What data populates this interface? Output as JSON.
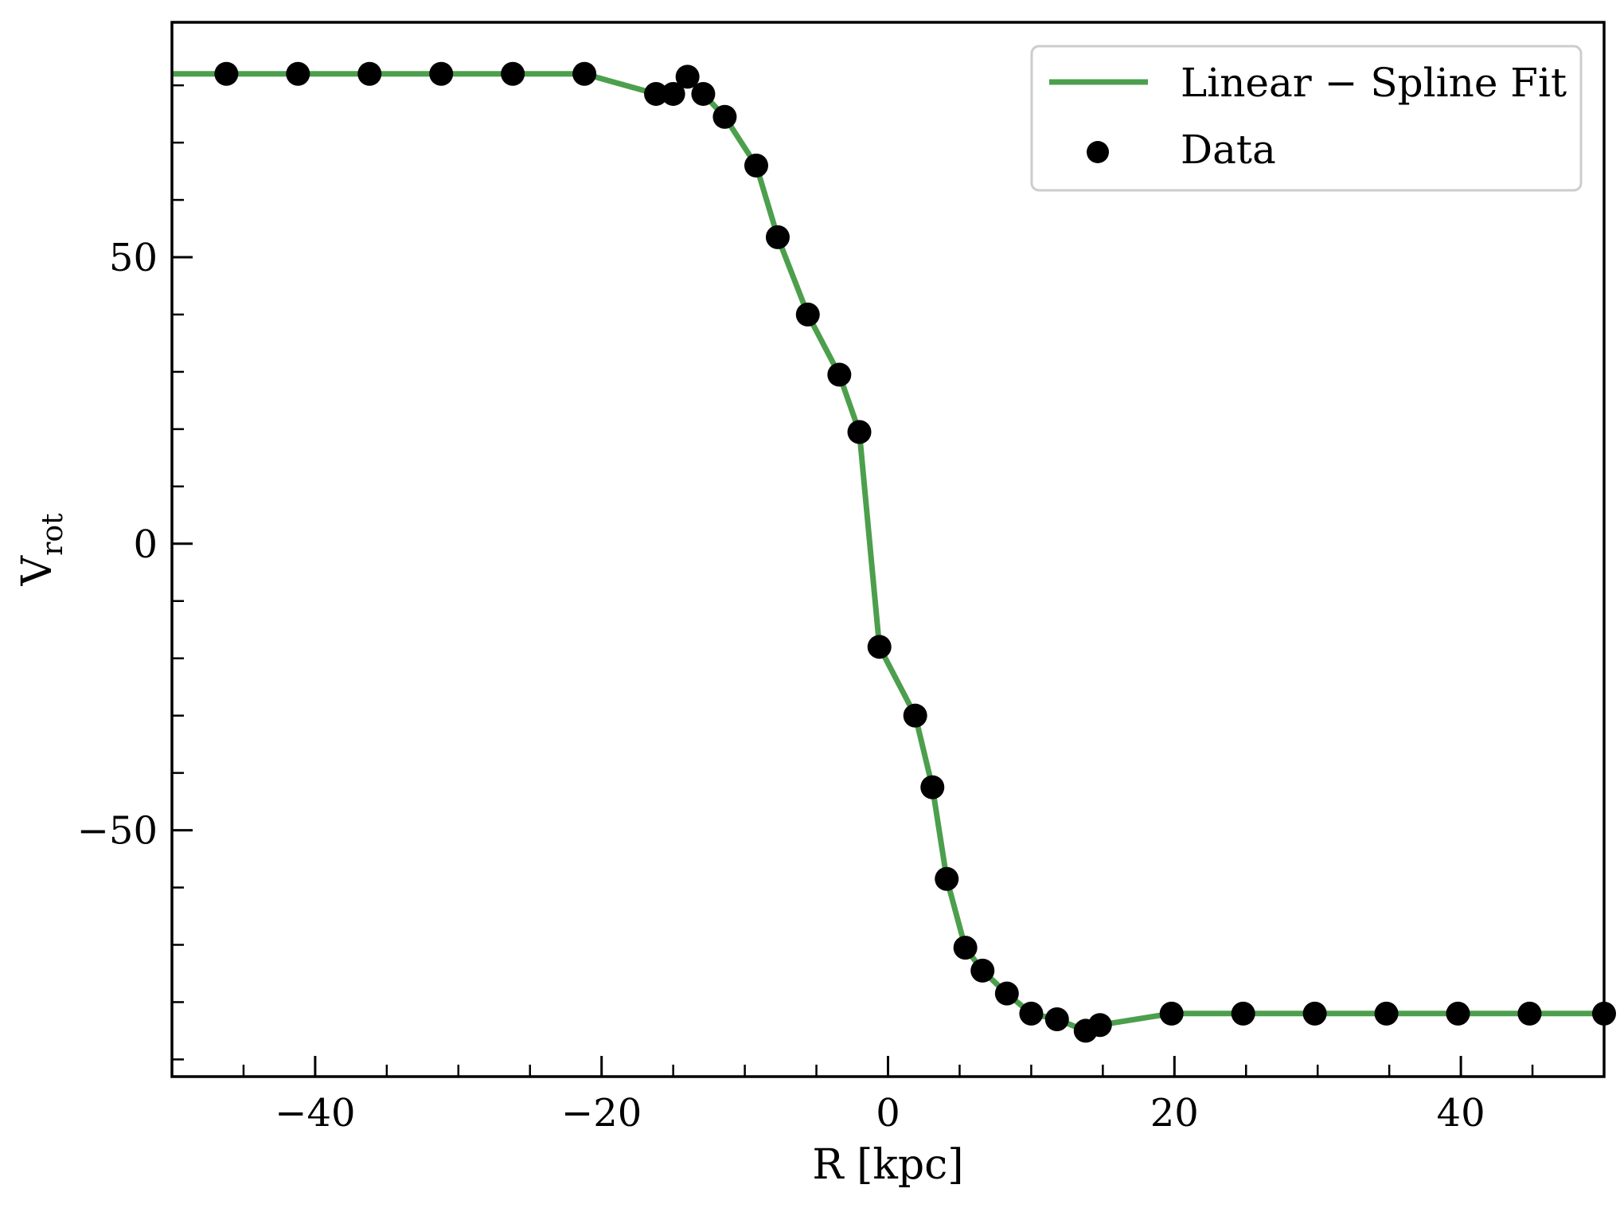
{
  "chart_data": {
    "type": "line",
    "title": "",
    "xlabel": "R [kpc]",
    "ylabel": "V",
    "ylabel_subscript": "rot",
    "xlim": [
      -50,
      50
    ],
    "ylim": [
      -93,
      91
    ],
    "x_ticks": [
      -40,
      -20,
      0,
      20,
      40
    ],
    "x_tick_labels": [
      "−40",
      "−20",
      "0",
      "20",
      "40"
    ],
    "x_minor_ticks": [
      -45,
      -35,
      -30,
      -25,
      -15,
      -10,
      -5,
      5,
      10,
      15,
      25,
      30,
      35,
      45
    ],
    "y_ticks": [
      -50,
      0,
      50
    ],
    "y_tick_labels": [
      "−50",
      "0",
      "50"
    ],
    "y_minor_ticks": [
      -90,
      -80,
      -70,
      -60,
      -40,
      -30,
      -20,
      -10,
      10,
      20,
      30,
      40,
      60,
      70,
      80
    ],
    "grid": false,
    "legend": {
      "placement": "top-right",
      "entries": [
        "Linear − Spline Fit",
        "Data"
      ]
    },
    "colors": {
      "fit": "#4c9f4c",
      "data": "#000000",
      "axes": "#000000"
    },
    "series": [
      {
        "name": "Linear − Spline Fit",
        "kind": "line",
        "x": [
          -50,
          -46.2,
          -41.2,
          -36.2,
          -31.2,
          -26.2,
          -21.2,
          -16.2,
          -15.0,
          -14.0,
          -12.9,
          -11.4,
          -9.2,
          -7.7,
          -5.6,
          -3.4,
          -2.0,
          -0.6,
          1.9,
          3.1,
          4.1,
          5.4,
          6.6,
          8.3,
          10.0,
          11.8,
          13.8,
          14.8,
          19.8,
          24.8,
          29.8,
          34.8,
          39.8,
          44.8,
          50.0
        ],
        "y": [
          82,
          82,
          82,
          82,
          82,
          82,
          82,
          78.5,
          78.5,
          81.5,
          78.5,
          74.5,
          66,
          53.5,
          40,
          29.5,
          19.5,
          -18,
          -30,
          -42.5,
          -58.5,
          -70.5,
          -74.5,
          -78.5,
          -82,
          -83,
          -85,
          -84,
          -82,
          -82,
          -82,
          -82,
          -82,
          -82,
          -82
        ]
      },
      {
        "name": "Data",
        "kind": "scatter",
        "x": [
          -46.2,
          -41.2,
          -36.2,
          -31.2,
          -26.2,
          -21.2,
          -16.2,
          -15.0,
          -14.0,
          -12.9,
          -11.4,
          -9.2,
          -7.7,
          -5.6,
          -3.4,
          -2.0,
          -0.6,
          1.9,
          3.1,
          4.1,
          5.4,
          6.6,
          8.3,
          10.0,
          11.8,
          13.8,
          14.8,
          19.8,
          24.8,
          29.8,
          34.8,
          39.8,
          44.8,
          50.0
        ],
        "y": [
          82,
          82,
          82,
          82,
          82,
          82,
          78.5,
          78.5,
          81.5,
          78.5,
          74.5,
          66,
          53.5,
          40,
          29.5,
          19.5,
          -18,
          -30,
          -42.5,
          -58.5,
          -70.5,
          -74.5,
          -78.5,
          -82,
          -83,
          -85,
          -84,
          -82,
          -82,
          -82,
          -82,
          -82,
          -82,
          -82
        ]
      }
    ]
  }
}
